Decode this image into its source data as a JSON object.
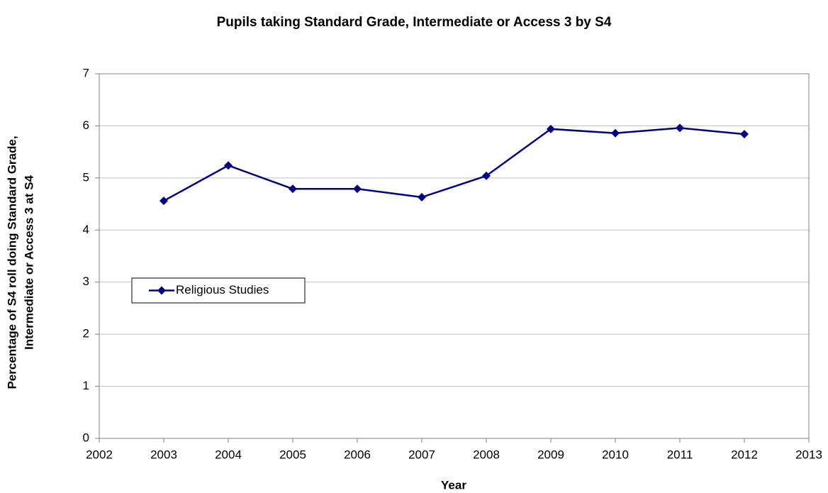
{
  "chart_data": {
    "type": "line",
    "title": "Pupils taking Standard Grade, Intermediate or Access 3 by S4",
    "xlabel": "Year",
    "ylabel": [
      "Percentage of S4 roll doing Standard Grade,",
      "Intermediate or Access 3 at S4"
    ],
    "x": [
      2003,
      2004,
      2005,
      2006,
      2007,
      2008,
      2009,
      2010,
      2011,
      2012
    ],
    "series": [
      {
        "name": "Religious Studies",
        "color": "#000080",
        "values": [
          4.56,
          5.24,
          4.79,
          4.79,
          4.63,
          5.04,
          5.94,
          5.86,
          5.96,
          5.84
        ]
      }
    ],
    "xlim": [
      2002,
      2013
    ],
    "xticks": [
      2002,
      2003,
      2004,
      2005,
      2006,
      2007,
      2008,
      2009,
      2010,
      2011,
      2012,
      2013
    ],
    "ylim": [
      0,
      7
    ],
    "yticks": [
      0,
      1,
      2,
      3,
      4,
      5,
      6,
      7
    ],
    "grid": true,
    "legend": "center-left"
  }
}
